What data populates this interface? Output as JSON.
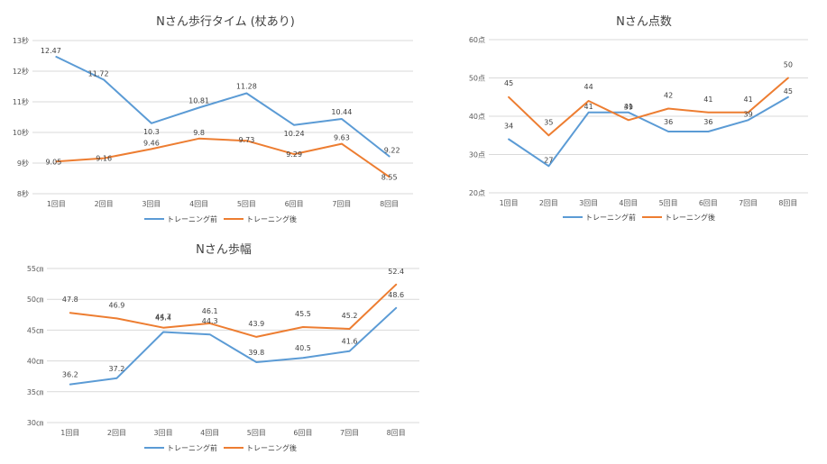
{
  "colors": {
    "before": "#5b9bd5",
    "after": "#ed7d31",
    "grid": "#d9d9d9",
    "text": "#404040"
  },
  "chart_data": [
    {
      "type": "line",
      "title": "Nさん歩行タイム (杖あり)",
      "categories": [
        "1回目",
        "2回目",
        "3回目",
        "4回目",
        "5回目",
        "6回目",
        "7回目",
        "8回目"
      ],
      "ylim": [
        8,
        13
      ],
      "yticks": [
        "8秒",
        "9秒",
        "10秒",
        "11秒",
        "12秒",
        "13秒"
      ],
      "grid": true,
      "legend": "bottom",
      "series": [
        {
          "name": "トレーニング前",
          "values": [
            12.47,
            11.72,
            10.3,
            10.81,
            11.28,
            10.24,
            10.44,
            9.22
          ],
          "labels": [
            "12.47",
            "11.72",
            "10.3",
            "10.81",
            "11.28",
            "10.24",
            "10.44",
            "9.22"
          ]
        },
        {
          "name": "トレーニング後",
          "values": [
            9.05,
            9.16,
            9.46,
            9.8,
            9.73,
            9.29,
            9.63,
            8.55
          ],
          "labels": [
            "9.05",
            "9.16",
            "9.46",
            "9.8",
            "9.73",
            "9.29",
            "9.63",
            "8.55"
          ]
        }
      ]
    },
    {
      "type": "line",
      "title": "Nさん点数",
      "categories": [
        "1回目",
        "2回目",
        "3回目",
        "4回目",
        "5回目",
        "6回目",
        "7回目",
        "8回目"
      ],
      "ylim": [
        20,
        60
      ],
      "yticks": [
        "20点",
        "30点",
        "40点",
        "50点",
        "60点"
      ],
      "grid": true,
      "legend": "bottom",
      "series": [
        {
          "name": "トレーニング前",
          "values": [
            34,
            27,
            41,
            41,
            36,
            36,
            39,
            45
          ],
          "labels": [
            "34",
            "27",
            "41",
            "41",
            "36",
            "36",
            "39",
            "45"
          ]
        },
        {
          "name": "トレーニング後",
          "values": [
            45,
            35,
            44,
            39,
            42,
            41,
            41,
            50
          ],
          "labels": [
            "45",
            "35",
            "44",
            "39",
            "42",
            "41",
            "41",
            "50"
          ]
        }
      ]
    },
    {
      "type": "line",
      "title": "Nさん歩幅",
      "categories": [
        "1回目",
        "2回目",
        "3回目",
        "4回目",
        "5回目",
        "6回目",
        "7回目",
        "8回目"
      ],
      "ylim": [
        30,
        55
      ],
      "yticks": [
        "30㎝",
        "35㎝",
        "40㎝",
        "45㎝",
        "50㎝",
        "55㎝"
      ],
      "grid": true,
      "legend": "bottom",
      "series": [
        {
          "name": "トレーニング前",
          "values": [
            36.2,
            37.2,
            44.7,
            44.3,
            39.8,
            40.5,
            41.6,
            48.6
          ],
          "labels": [
            "36.2",
            "37.2",
            "44.7",
            "44.3",
            "39.8",
            "40.5",
            "41.6",
            "48.6"
          ]
        },
        {
          "name": "トレーニング後",
          "values": [
            47.8,
            46.9,
            45.4,
            46.1,
            43.9,
            45.5,
            45.2,
            52.4
          ],
          "labels": [
            "47.8",
            "46.9",
            "45.4",
            "46.1",
            "43.9",
            "45.5",
            "45.2",
            "52.4"
          ]
        }
      ]
    }
  ]
}
